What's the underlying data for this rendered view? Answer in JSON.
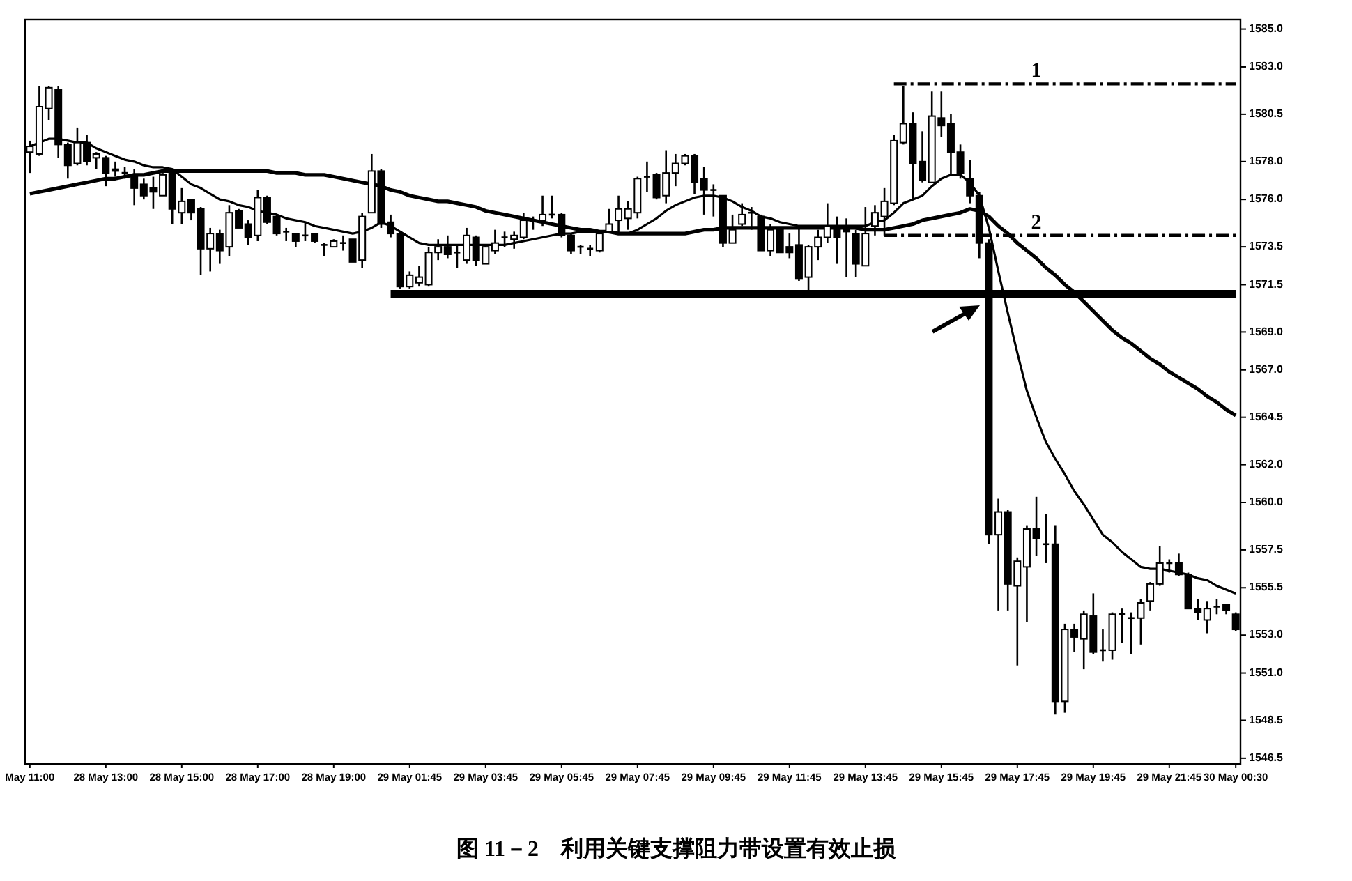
{
  "chart_data": {
    "type": "candlestick",
    "title": "图 11－2　利用关键支撑阻力带设置有效止损",
    "categories": [
      "May 11:00",
      null,
      null,
      null,
      null,
      null,
      null,
      null,
      "28 May 13:00",
      null,
      null,
      null,
      null,
      null,
      null,
      null,
      "28 May 15:00",
      null,
      null,
      null,
      null,
      null,
      null,
      null,
      "28 May 17:00",
      null,
      null,
      null,
      null,
      null,
      null,
      null,
      "28 May 19:00",
      null,
      null,
      null,
      null,
      null,
      null,
      null,
      "29 May 01:45",
      null,
      null,
      null,
      null,
      null,
      null,
      null,
      "29 May 03:45",
      null,
      null,
      null,
      null,
      null,
      null,
      null,
      "29 May 05:45",
      null,
      null,
      null,
      null,
      null,
      null,
      null,
      "29 May 07:45",
      null,
      null,
      null,
      null,
      null,
      null,
      null,
      "29 May 09:45",
      null,
      null,
      null,
      null,
      null,
      null,
      null,
      "29 May 11:45",
      null,
      null,
      null,
      null,
      null,
      null,
      null,
      "29 May 13:45",
      null,
      null,
      null,
      null,
      null,
      null,
      null,
      "29 May 15:45",
      null,
      null,
      null,
      null,
      null,
      null,
      null,
      "29 May 17:45",
      null,
      null,
      null,
      null,
      null,
      null,
      null,
      "29 May 19:45",
      null,
      null,
      null,
      null,
      null,
      null,
      null,
      "29 May 21:45",
      null,
      null,
      null,
      null,
      null,
      null,
      "30 May 00:30"
    ],
    "ohlc": [
      [
        1578.5,
        1579.1,
        1577.4,
        1578.8
      ],
      [
        1578.4,
        1582.0,
        1578.3,
        1580.9
      ],
      [
        1580.8,
        1582.0,
        1580.2,
        1581.9
      ],
      [
        1581.8,
        1582.0,
        1578.2,
        1578.9
      ],
      [
        1578.9,
        1579.0,
        1577.1,
        1577.8
      ],
      [
        1577.9,
        1579.8,
        1577.8,
        1579.0
      ],
      [
        1579.0,
        1579.4,
        1577.8,
        1578.0
      ],
      [
        1578.2,
        1578.5,
        1577.6,
        1578.4
      ],
      [
        1578.2,
        1578.3,
        1576.7,
        1577.4
      ],
      [
        1577.6,
        1578.0,
        1577.2,
        1577.5
      ],
      [
        1577.4,
        1577.7,
        1577.1,
        1577.4
      ],
      [
        1577.2,
        1577.6,
        1575.7,
        1576.6
      ],
      [
        1576.8,
        1577.1,
        1576.0,
        1576.2
      ],
      [
        1576.6,
        1577.2,
        1575.5,
        1576.4
      ],
      [
        1576.2,
        1577.4,
        1576.2,
        1577.3
      ],
      [
        1577.5,
        1577.6,
        1574.7,
        1575.5
      ],
      [
        1575.3,
        1576.6,
        1574.7,
        1575.9
      ],
      [
        1576.0,
        1576.0,
        1574.9,
        1575.3
      ],
      [
        1575.5,
        1575.6,
        1572.0,
        1573.4
      ],
      [
        1573.4,
        1574.5,
        1572.2,
        1574.2
      ],
      [
        1574.2,
        1574.4,
        1572.6,
        1573.3
      ],
      [
        1573.5,
        1575.7,
        1573.0,
        1575.3
      ],
      [
        1575.4,
        1575.5,
        1574.5,
        1574.5
      ],
      [
        1574.7,
        1574.9,
        1573.6,
        1574.0
      ],
      [
        1574.1,
        1576.5,
        1573.8,
        1576.1
      ],
      [
        1576.1,
        1576.2,
        1574.7,
        1574.8
      ],
      [
        1575.1,
        1575.2,
        1574.1,
        1574.2
      ],
      [
        1574.3,
        1574.5,
        1573.8,
        1574.3
      ],
      [
        1574.2,
        1574.2,
        1573.5,
        1573.8
      ],
      [
        1574.1,
        1574.8,
        1573.8,
        1574.1
      ],
      [
        1574.2,
        1574.2,
        1573.7,
        1573.8
      ],
      [
        1573.6,
        1573.7,
        1573.0,
        1573.6
      ],
      [
        1573.5,
        1573.9,
        1573.5,
        1573.8
      ],
      [
        1573.7,
        1574.1,
        1573.3,
        1573.7
      ],
      [
        1573.9,
        1573.9,
        1572.7,
        1572.7
      ],
      [
        1572.8,
        1575.3,
        1572.4,
        1575.1
      ],
      [
        1575.3,
        1578.4,
        1575.3,
        1577.5
      ],
      [
        1577.5,
        1577.6,
        1574.5,
        1574.7
      ],
      [
        1574.8,
        1575.2,
        1574.0,
        1574.2
      ],
      [
        1574.2,
        1574.3,
        1571.3,
        1571.4
      ],
      [
        1571.4,
        1572.2,
        1571.3,
        1572.0
      ],
      [
        1571.6,
        1572.5,
        1571.4,
        1571.9
      ],
      [
        1571.5,
        1573.5,
        1571.4,
        1573.2
      ],
      [
        1573.2,
        1573.9,
        1572.8,
        1573.5
      ],
      [
        1573.5,
        1574.1,
        1572.9,
        1573.1
      ],
      [
        1573.2,
        1573.6,
        1572.4,
        1573.2
      ],
      [
        1572.8,
        1574.5,
        1572.6,
        1574.1
      ],
      [
        1574.0,
        1574.1,
        1572.5,
        1572.8
      ],
      [
        1572.6,
        1573.6,
        1572.6,
        1573.5
      ],
      [
        1573.3,
        1574.4,
        1573.1,
        1573.7
      ],
      [
        1574.0,
        1574.3,
        1573.5,
        1574.0
      ],
      [
        1573.9,
        1574.3,
        1573.4,
        1574.1
      ],
      [
        1574.0,
        1575.3,
        1573.9,
        1574.9
      ],
      [
        1574.9,
        1575.1,
        1574.4,
        1574.9
      ],
      [
        1574.9,
        1576.2,
        1574.6,
        1575.2
      ],
      [
        1575.2,
        1576.2,
        1575.0,
        1575.2
      ],
      [
        1575.2,
        1575.3,
        1574.0,
        1574.1
      ],
      [
        1574.1,
        1574.2,
        1573.1,
        1573.3
      ],
      [
        1573.5,
        1573.6,
        1573.1,
        1573.5
      ],
      [
        1573.4,
        1573.6,
        1573.0,
        1573.4
      ],
      [
        1573.3,
        1574.3,
        1573.2,
        1574.2
      ],
      [
        1574.3,
        1575.5,
        1574.2,
        1574.7
      ],
      [
        1574.9,
        1576.2,
        1574.2,
        1575.5
      ],
      [
        1575.0,
        1575.9,
        1574.4,
        1575.5
      ],
      [
        1575.3,
        1577.2,
        1575.0,
        1577.1
      ],
      [
        1577.2,
        1578.0,
        1576.4,
        1577.2
      ],
      [
        1577.3,
        1577.4,
        1576.0,
        1576.1
      ],
      [
        1576.2,
        1578.6,
        1575.8,
        1577.4
      ],
      [
        1577.4,
        1578.4,
        1576.7,
        1577.9
      ],
      [
        1577.9,
        1578.4,
        1577.8,
        1578.3
      ],
      [
        1578.3,
        1578.4,
        1576.3,
        1576.9
      ],
      [
        1577.1,
        1577.7,
        1575.2,
        1576.5
      ],
      [
        1576.5,
        1576.8,
        1575.1,
        1576.5
      ],
      [
        1576.2,
        1576.2,
        1573.5,
        1573.7
      ],
      [
        1573.7,
        1575.2,
        1573.7,
        1574.4
      ],
      [
        1574.7,
        1575.8,
        1574.6,
        1575.2
      ],
      [
        1575.3,
        1575.6,
        1574.4,
        1575.3
      ],
      [
        1575.1,
        1575.2,
        1573.3,
        1573.3
      ],
      [
        1573.3,
        1574.7,
        1573.0,
        1574.4
      ],
      [
        1574.4,
        1574.5,
        1573.2,
        1573.2
      ],
      [
        1573.5,
        1574.2,
        1572.9,
        1573.2
      ],
      [
        1573.6,
        1574.5,
        1571.7,
        1571.8
      ],
      [
        1571.9,
        1573.6,
        1571.2,
        1573.5
      ],
      [
        1573.5,
        1574.4,
        1572.8,
        1574.0
      ],
      [
        1574.0,
        1575.8,
        1573.7,
        1574.6
      ],
      [
        1574.6,
        1575.1,
        1572.6,
        1574.0
      ],
      [
        1574.4,
        1575.0,
        1571.9,
        1574.3
      ],
      [
        1574.2,
        1574.4,
        1571.9,
        1572.6
      ],
      [
        1572.5,
        1575.6,
        1572.5,
        1574.2
      ],
      [
        1574.6,
        1575.7,
        1574.1,
        1575.3
      ],
      [
        1575.1,
        1576.6,
        1574.1,
        1575.9
      ],
      [
        1575.8,
        1579.4,
        1575.7,
        1579.1
      ],
      [
        1579.0,
        1582.0,
        1578.9,
        1580.0
      ],
      [
        1580.0,
        1580.6,
        1576.0,
        1577.9
      ],
      [
        1578.0,
        1579.6,
        1576.9,
        1577.0
      ],
      [
        1576.9,
        1581.7,
        1576.9,
        1580.4
      ],
      [
        1580.3,
        1581.7,
        1579.3,
        1579.9
      ],
      [
        1580.0,
        1580.5,
        1577.3,
        1578.5
      ],
      [
        1578.5,
        1578.9,
        1577.1,
        1577.4
      ],
      [
        1577.1,
        1578.1,
        1575.8,
        1576.2
      ],
      [
        1576.2,
        1576.4,
        1572.9,
        1573.7
      ],
      [
        1573.7,
        1573.9,
        1557.8,
        1558.3
      ],
      [
        1558.3,
        1560.2,
        1554.3,
        1559.5
      ],
      [
        1559.5,
        1559.6,
        1554.3,
        1555.7
      ],
      [
        1555.6,
        1557.1,
        1551.4,
        1556.9
      ],
      [
        1556.6,
        1558.8,
        1553.7,
        1558.6
      ],
      [
        1558.6,
        1560.3,
        1557.2,
        1558.1
      ],
      [
        1557.8,
        1559.4,
        1556.8,
        1557.8
      ],
      [
        1557.8,
        1558.8,
        1548.8,
        1549.5
      ],
      [
        1549.5,
        1553.6,
        1548.9,
        1553.3
      ],
      [
        1553.3,
        1553.6,
        1552.1,
        1552.9
      ],
      [
        1552.8,
        1554.3,
        1551.2,
        1554.1
      ],
      [
        1554.0,
        1555.2,
        1552.0,
        1552.1
      ],
      [
        1552.2,
        1553.3,
        1551.6,
        1552.2
      ],
      [
        1552.2,
        1554.2,
        1551.7,
        1554.1
      ],
      [
        1554.1,
        1554.4,
        1552.6,
        1554.1
      ],
      [
        1553.9,
        1554.2,
        1552.0,
        1553.9
      ],
      [
        1553.9,
        1554.9,
        1552.5,
        1554.7
      ],
      [
        1554.8,
        1555.8,
        1554.3,
        1555.7
      ],
      [
        1555.7,
        1557.7,
        1555.6,
        1556.8
      ],
      [
        1556.8,
        1557.0,
        1556.3,
        1556.8
      ],
      [
        1556.8,
        1557.3,
        1556.1,
        1556.2
      ],
      [
        1556.2,
        1556.3,
        1554.4,
        1554.4
      ],
      [
        1554.4,
        1554.9,
        1553.8,
        1554.2
      ],
      [
        1553.8,
        1554.8,
        1553.1,
        1554.4
      ],
      [
        1554.5,
        1554.9,
        1554.1,
        1554.5
      ],
      [
        1554.6,
        1554.6,
        1554.1,
        1554.3
      ],
      [
        1554.1,
        1554.2,
        1553.2,
        1553.3
      ]
    ],
    "series": [
      {
        "type": "line",
        "color": "#000000",
        "values": [
          1578.8,
          1579.0,
          1579.2,
          1579.2,
          1579.1,
          1579.0,
          1579.0,
          1578.7,
          1578.5,
          1578.3,
          1578.1,
          1578.0,
          1577.8,
          1577.7,
          1577.7,
          1577.6,
          1577.2,
          1576.8,
          1576.6,
          1576.3,
          1576.0,
          1575.9,
          1575.7,
          1575.6,
          1575.4,
          1575.3,
          1575.2,
          1575.0,
          1574.9,
          1574.8,
          1574.6,
          1574.5,
          1574.4,
          1574.3,
          1574.2,
          1574.3,
          1574.5,
          1574.8,
          1574.6,
          1574.3,
          1574.0,
          1573.7,
          1573.6,
          1573.6,
          1573.6,
          1573.6,
          1573.6,
          1573.6,
          1573.6,
          1573.6,
          1573.6,
          1573.7,
          1573.8,
          1573.9,
          1574.0,
          1574.1,
          1574.2,
          1574.2,
          1574.3,
          1574.3,
          1574.3,
          1574.3,
          1574.2,
          1574.2,
          1574.4,
          1574.7,
          1575.0,
          1575.4,
          1575.7,
          1575.9,
          1576.1,
          1576.2,
          1576.2,
          1576.1,
          1575.9,
          1575.6,
          1575.4,
          1575.1,
          1575.0,
          1574.8,
          1574.7,
          1574.6,
          1574.6,
          1574.6,
          1574.6,
          1574.6,
          1574.6,
          1574.6,
          1574.6,
          1574.8,
          1574.9,
          1575.3,
          1575.8,
          1576.0,
          1576.2,
          1576.7,
          1577.1,
          1577.3,
          1577.3,
          1576.9,
          1576.2,
          1574.5,
          1572.2,
          1570.0,
          1567.9,
          1565.9,
          1564.5,
          1563.2,
          1562.3,
          1561.5,
          1560.6,
          1559.9,
          1559.1,
          1558.3,
          1557.9,
          1557.4,
          1557.0,
          1556.6,
          1556.5,
          1556.5,
          1556.4,
          1556.3,
          1556.2,
          1556.0,
          1555.9,
          1555.6,
          1555.4,
          1555.2
        ]
      },
      {
        "type": "line",
        "color": "#000000",
        "values": [
          1576.3,
          1576.4,
          1576.5,
          1576.6,
          1576.7,
          1576.8,
          1576.9,
          1577.0,
          1577.1,
          1577.1,
          1577.2,
          1577.3,
          1577.3,
          1577.4,
          1577.5,
          1577.5,
          1577.5,
          1577.5,
          1577.5,
          1577.5,
          1577.5,
          1577.5,
          1577.5,
          1577.5,
          1577.5,
          1577.5,
          1577.4,
          1577.4,
          1577.4,
          1577.3,
          1577.3,
          1577.3,
          1577.2,
          1577.1,
          1577.0,
          1576.9,
          1576.8,
          1576.7,
          1576.5,
          1576.4,
          1576.2,
          1576.1,
          1576.0,
          1575.9,
          1575.9,
          1575.8,
          1575.7,
          1575.6,
          1575.4,
          1575.3,
          1575.2,
          1575.1,
          1575.0,
          1574.9,
          1574.8,
          1574.7,
          1574.6,
          1574.5,
          1574.4,
          1574.4,
          1574.3,
          1574.3,
          1574.2,
          1574.2,
          1574.2,
          1574.2,
          1574.2,
          1574.2,
          1574.2,
          1574.2,
          1574.3,
          1574.4,
          1574.4,
          1574.5,
          1574.5,
          1574.5,
          1574.5,
          1574.5,
          1574.5,
          1574.5,
          1574.5,
          1574.5,
          1574.5,
          1574.5,
          1574.5,
          1574.5,
          1574.5,
          1574.5,
          1574.4,
          1574.4,
          1574.4,
          1574.5,
          1574.6,
          1574.7,
          1574.9,
          1575.0,
          1575.1,
          1575.2,
          1575.3,
          1575.5,
          1575.4,
          1575.1,
          1574.6,
          1574.2,
          1573.7,
          1573.3,
          1572.9,
          1572.4,
          1572.0,
          1571.5,
          1571.1,
          1570.6,
          1570.1,
          1569.6,
          1569.1,
          1568.7,
          1568.4,
          1568.0,
          1567.6,
          1567.3,
          1566.9,
          1566.6,
          1566.3,
          1566.0,
          1565.6,
          1565.3,
          1564.9,
          1564.6
        ]
      },
      {
        "type": "line",
        "name": "1",
        "color": "#000000",
        "line_style": "dashed",
        "values": [
          null,
          null,
          null,
          null,
          null,
          null,
          null,
          null,
          null,
          null,
          null,
          null,
          null,
          null,
          null,
          null,
          null,
          null,
          null,
          null,
          null,
          null,
          null,
          null,
          null,
          null,
          null,
          null,
          null,
          null,
          null,
          null,
          null,
          null,
          null,
          null,
          null,
          null,
          null,
          null,
          null,
          null,
          null,
          null,
          null,
          null,
          null,
          null,
          null,
          null,
          null,
          null,
          null,
          null,
          null,
          null,
          null,
          null,
          null,
          null,
          null,
          null,
          null,
          null,
          null,
          null,
          null,
          null,
          null,
          null,
          null,
          null,
          null,
          null,
          null,
          null,
          null,
          null,
          null,
          null,
          null,
          null,
          null,
          null,
          null,
          null,
          null,
          null,
          null,
          null,
          null,
          1582.1,
          1582.1,
          1582.1,
          1582.1,
          1582.1,
          1582.1,
          1582.1,
          1582.1,
          1582.1,
          1582.1,
          1582.1,
          1582.1,
          1582.1,
          1582.1,
          1582.1,
          1582.1,
          1582.1,
          1582.1,
          1582.1,
          1582.1,
          1582.1,
          1582.1,
          1582.1,
          1582.1,
          1582.1,
          1582.1,
          1582.1,
          1582.1,
          1582.1,
          1582.1,
          1582.1,
          1582.1,
          1582.1,
          1582.1,
          1582.1,
          1582.1,
          1582.1
        ]
      },
      {
        "type": "line",
        "name": "2",
        "color": "#000000",
        "line_style": "dashed",
        "values": [
          null,
          null,
          null,
          null,
          null,
          null,
          null,
          null,
          null,
          null,
          null,
          null,
          null,
          null,
          null,
          null,
          null,
          null,
          null,
          null,
          null,
          null,
          null,
          null,
          null,
          null,
          null,
          null,
          null,
          null,
          null,
          null,
          null,
          null,
          null,
          null,
          null,
          null,
          null,
          null,
          null,
          null,
          null,
          null,
          null,
          null,
          null,
          null,
          null,
          null,
          null,
          null,
          null,
          null,
          null,
          null,
          null,
          null,
          null,
          null,
          null,
          null,
          null,
          null,
          null,
          null,
          null,
          null,
          null,
          null,
          null,
          null,
          null,
          null,
          null,
          null,
          null,
          null,
          null,
          null,
          null,
          null,
          null,
          null,
          null,
          null,
          null,
          null,
          null,
          null,
          1574.1,
          1574.1,
          1574.1,
          1574.1,
          1574.1,
          1574.1,
          1574.1,
          1574.1,
          1574.1,
          1574.1,
          1574.1,
          1574.1,
          1574.1,
          1574.1,
          1574.1,
          1574.1,
          1574.1,
          1574.1,
          1574.1,
          1574.1,
          1574.1,
          1574.1,
          1574.1,
          1574.1,
          1574.1,
          1574.1,
          1574.1,
          1574.1,
          1574.1,
          1574.1,
          1574.1,
          1574.1,
          1574.1,
          1574.1,
          1574.1,
          1574.1,
          1574.1,
          1574.1
        ]
      },
      {
        "type": "line",
        "color": "#000000",
        "values": [
          null,
          null,
          null,
          null,
          null,
          null,
          null,
          null,
          null,
          null,
          null,
          null,
          null,
          null,
          null,
          null,
          null,
          null,
          null,
          null,
          null,
          null,
          null,
          null,
          null,
          null,
          null,
          null,
          null,
          null,
          null,
          null,
          null,
          null,
          null,
          null,
          null,
          null,
          1571.0,
          1571.0,
          1571.0,
          1571.0,
          1571.0,
          1571.0,
          1571.0,
          1571.0,
          1571.0,
          1571.0,
          1571.0,
          1571.0,
          1571.0,
          1571.0,
          1571.0,
          1571.0,
          1571.0,
          1571.0,
          1571.0,
          1571.0,
          1571.0,
          1571.0,
          1571.0,
          1571.0,
          1571.0,
          1571.0,
          1571.0,
          1571.0,
          1571.0,
          1571.0,
          1571.0,
          1571.0,
          1571.0,
          1571.0,
          1571.0,
          1571.0,
          1571.0,
          1571.0,
          1571.0,
          1571.0,
          1571.0,
          1571.0,
          1571.0,
          1571.0,
          1571.0,
          1571.0,
          1571.0,
          1571.0,
          1571.0,
          1571.0,
          1571.0,
          1571.0,
          1571.0,
          1571.0,
          1571.0,
          1571.0,
          1571.0,
          1571.0,
          1571.0,
          1571.0,
          1571.0,
          1571.0,
          1571.0,
          1571.0,
          1571.0,
          1571.0,
          1571.0,
          1571.0,
          1571.0,
          1571.0,
          1571.0,
          1571.0,
          1571.0,
          1571.0,
          1571.0,
          1571.0,
          1571.0,
          1571.0,
          1571.0,
          1571.0,
          1571.0,
          1571.0,
          1571.0,
          1571.0,
          1571.0,
          1571.0,
          1571.0,
          1571.0,
          1571.0,
          1571.0
        ]
      }
    ],
    "ylim": [
      1546.2,
      1585.5
    ],
    "yticks": [
      {
        "value": 1585,
        "label": "1585.0"
      },
      {
        "value": 1583,
        "label": "1583.0"
      },
      {
        "value": 1580.5,
        "label": "1580.5"
      },
      {
        "value": 1578,
        "label": "1578.0"
      },
      {
        "value": 1576,
        "label": "1576.0"
      },
      {
        "value": 1573.5,
        "label": "1573.5"
      },
      {
        "value": 1571.5,
        "label": "1571.5"
      },
      {
        "value": 1569,
        "label": "1569.0"
      },
      {
        "value": 1567,
        "label": "1567.0"
      },
      {
        "value": 1564.5,
        "label": "1564.5"
      },
      {
        "value": 1562,
        "label": "1562.0"
      },
      {
        "value": 1560,
        "label": "1560.0"
      },
      {
        "value": 1557.5,
        "label": "1557.5"
      },
      {
        "value": 1555.5,
        "label": "1555.5"
      },
      {
        "value": 1553,
        "label": "1553.0"
      },
      {
        "value": 1551,
        "label": "1551.0"
      },
      {
        "value": 1548.5,
        "label": "1548.5"
      },
      {
        "value": 1546.5,
        "label": "1546.5"
      }
    ]
  }
}
